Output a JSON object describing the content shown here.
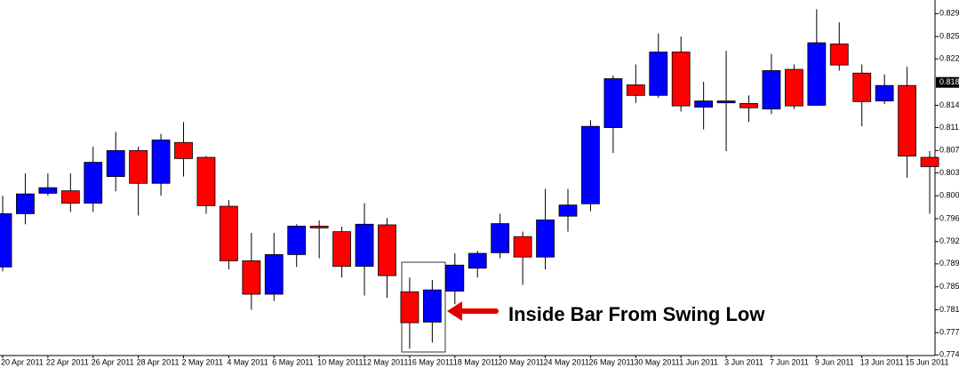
{
  "chart_data": {
    "type": "candlestick",
    "categories": [
      "20 Apr 2011",
      null,
      "22 Apr 2011",
      null,
      "26 Apr 2011",
      null,
      "28 Apr 2011",
      null,
      "2 May 2011",
      null,
      "4 May 2011",
      null,
      "6 May 2011",
      null,
      "10 May 2011",
      null,
      "12 May 2011",
      null,
      "16 May 2011",
      null,
      "18 May 2011",
      null,
      "20 May 2011",
      null,
      "24 May 2011",
      null,
      "26 May 2011",
      null,
      "30 May 2011",
      null,
      "1 Jun 2011",
      null,
      "3 Jun 2011",
      null,
      "7 Jun 2011",
      null,
      "9 Jun 2011",
      null,
      "13 Jun 2011",
      null,
      "15 Jun 2011",
      null
    ],
    "open": [
      0.7885,
      0.7971,
      0.8004,
      0.8008,
      0.7988,
      0.8031,
      0.8073,
      0.802,
      0.8086,
      0.8062,
      0.7983,
      0.7895,
      0.7841,
      0.7905,
      0.7951,
      0.7942,
      0.7886,
      0.7953,
      0.7845,
      0.7796,
      0.7846,
      0.7883,
      0.7908,
      0.7934,
      0.7901,
      0.7967,
      0.7987,
      0.811,
      0.8179,
      0.8162,
      0.8232,
      0.8143,
      0.815,
      0.8149,
      0.814,
      0.8204,
      0.8146,
      0.8245,
      0.8198,
      0.8153,
      0.8178,
      0.8062
    ],
    "high": [
      0.8,
      0.8036,
      0.8036,
      0.8036,
      0.8079,
      0.8103,
      0.8079,
      0.81,
      0.8119,
      0.8064,
      0.7993,
      0.794,
      0.794,
      0.7954,
      0.796,
      0.795,
      0.7988,
      0.7964,
      0.7868,
      0.7864,
      0.7907,
      0.7911,
      0.7971,
      0.7942,
      0.8011,
      0.8011,
      0.8122,
      0.8194,
      0.8212,
      0.8262,
      0.8257,
      0.8184,
      0.8234,
      0.8162,
      0.8229,
      0.8212,
      0.8301,
      0.828,
      0.8212,
      0.8196,
      0.8208,
      0.8072
    ],
    "low": [
      0.7878,
      0.7954,
      0.8,
      0.7974,
      0.7974,
      0.8007,
      0.7968,
      0.8,
      0.8031,
      0.7971,
      0.7881,
      0.7816,
      0.783,
      0.7885,
      0.7899,
      0.7868,
      0.7839,
      0.7835,
      0.7753,
      0.7763,
      0.7825,
      0.7868,
      0.7899,
      0.7856,
      0.7881,
      0.7942,
      0.7975,
      0.8069,
      0.815,
      0.8158,
      0.8136,
      0.8107,
      0.8072,
      0.8119,
      0.8132,
      0.814,
      0.8146,
      0.8202,
      0.8112,
      0.8148,
      0.8029,
      0.7971
    ],
    "close": [
      0.7971,
      0.8003,
      0.8013,
      0.7988,
      0.8054,
      0.8073,
      0.802,
      0.809,
      0.806,
      0.7984,
      0.7895,
      0.7841,
      0.7905,
      0.7951,
      0.7948,
      0.7886,
      0.7954,
      0.7871,
      0.7795,
      0.7848,
      0.7888,
      0.7907,
      0.7955,
      0.7901,
      0.7961,
      0.7985,
      0.8112,
      0.8189,
      0.8162,
      0.8232,
      0.8145,
      0.8153,
      0.8153,
      0.8142,
      0.8202,
      0.8145,
      0.8247,
      0.8211,
      0.8152,
      0.8178,
      0.8064,
      0.8047
    ],
    "up_color": "#0000ff",
    "down_color": "#ff0000",
    "ylim": [
      0.7742,
      0.8316
    ],
    "yticks": [
      0.8294,
      0.8257,
      0.8221,
      0.8146,
      {
        "value": 0.811,
        "label": "0.8110"
      },
      0.8073,
      0.8037,
      {
        "value": 0.8,
        "label": "0.8000"
      },
      0.7963,
      0.7926,
      {
        "value": 0.789,
        "label": "0.7890"
      },
      0.7853,
      0.7816,
      0.7779,
      0.7743
    ],
    "current_price": 0.8183,
    "annotation": "Inside Bar From Swing Low"
  }
}
